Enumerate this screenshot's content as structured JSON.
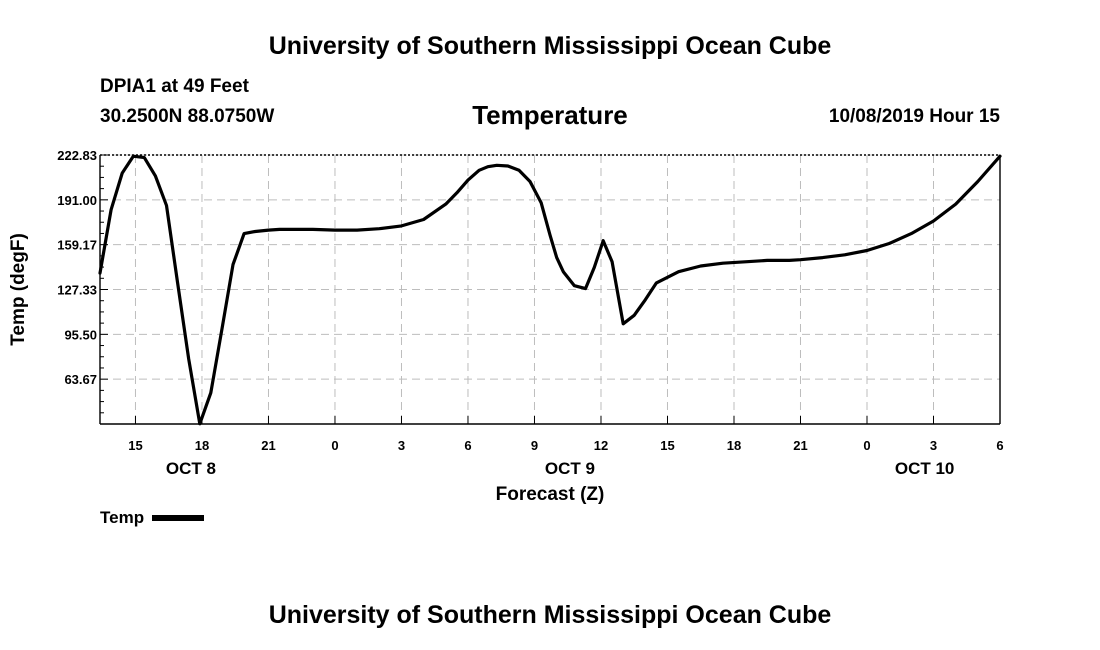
{
  "header": {
    "title_top": "University of Southern Mississippi Ocean Cube",
    "station": "DPIA1 at 49 Feet",
    "coords": "30.2500N 88.0750W",
    "variable": "Temperature",
    "datetime": "10/08/2019 Hour 15"
  },
  "footer": {
    "title_bottom": "University of Southern Mississippi Ocean Cube"
  },
  "legend": {
    "label": "Temp"
  },
  "colors": {
    "line": "#000000",
    "grid": "#bdbdbd"
  },
  "chart_data": {
    "type": "line",
    "title": "Temperature",
    "xlabel": "Forecast (Z)",
    "ylabel": "Temp (degF)",
    "ylim": [
      31.84,
      222.83
    ],
    "xlim": [
      13.4,
      54
    ],
    "yticks": [
      63.67,
      95.5,
      127.33,
      159.17,
      191.0,
      222.83
    ],
    "ytick_labels": [
      "63.67",
      "95.50",
      "127.33",
      "159.17",
      "191.00",
      "222.83"
    ],
    "xticks": [
      15,
      18,
      21,
      24,
      27,
      30,
      33,
      36,
      39,
      42,
      45,
      48,
      51,
      54
    ],
    "xtick_labels": [
      "15",
      "18",
      "21",
      "0",
      "3",
      "6",
      "9",
      "12",
      "15",
      "18",
      "21",
      "0",
      "3",
      "6"
    ],
    "date_labels": [
      {
        "x": 17.5,
        "label": "OCT 8"
      },
      {
        "x": 34.6,
        "label": "OCT 9"
      },
      {
        "x": 50.6,
        "label": "OCT 10"
      }
    ],
    "grid": true,
    "legend_position": "bottom-left",
    "series": [
      {
        "name": "Temp",
        "x": [
          13.4,
          13.9,
          14.4,
          14.9,
          15.4,
          15.9,
          16.4,
          16.9,
          17.4,
          17.9,
          18.4,
          18.9,
          19.4,
          19.9,
          20.4,
          21,
          21.5,
          22,
          23,
          24,
          25,
          26,
          27,
          28,
          29,
          29.5,
          30,
          30.5,
          30.9,
          31.3,
          31.8,
          32.3,
          32.8,
          33.3,
          33.7,
          34,
          34.3,
          34.8,
          35.3,
          35.7,
          36.1,
          36.5,
          37,
          37.5,
          38,
          38.5,
          39.5,
          40.5,
          41.5,
          42.5,
          43.5,
          44.5,
          45,
          46,
          47,
          48,
          49,
          50,
          51,
          52,
          53,
          54
        ],
        "values": [
          139,
          184,
          210,
          222,
          221,
          208,
          187,
          132,
          78,
          32,
          54,
          99,
          145,
          167,
          168.5,
          169.5,
          170,
          170,
          170,
          169.5,
          169.5,
          170.5,
          172.5,
          177,
          188,
          196,
          205,
          212,
          214.5,
          215.5,
          215,
          212,
          204,
          189,
          166,
          150,
          140,
          130,
          128,
          143,
          162,
          147,
          103,
          109,
          120,
          132,
          140,
          144,
          146,
          147,
          148,
          148,
          148.5,
          150,
          152,
          155,
          160,
          167,
          176,
          188,
          204,
          222
        ]
      }
    ]
  }
}
